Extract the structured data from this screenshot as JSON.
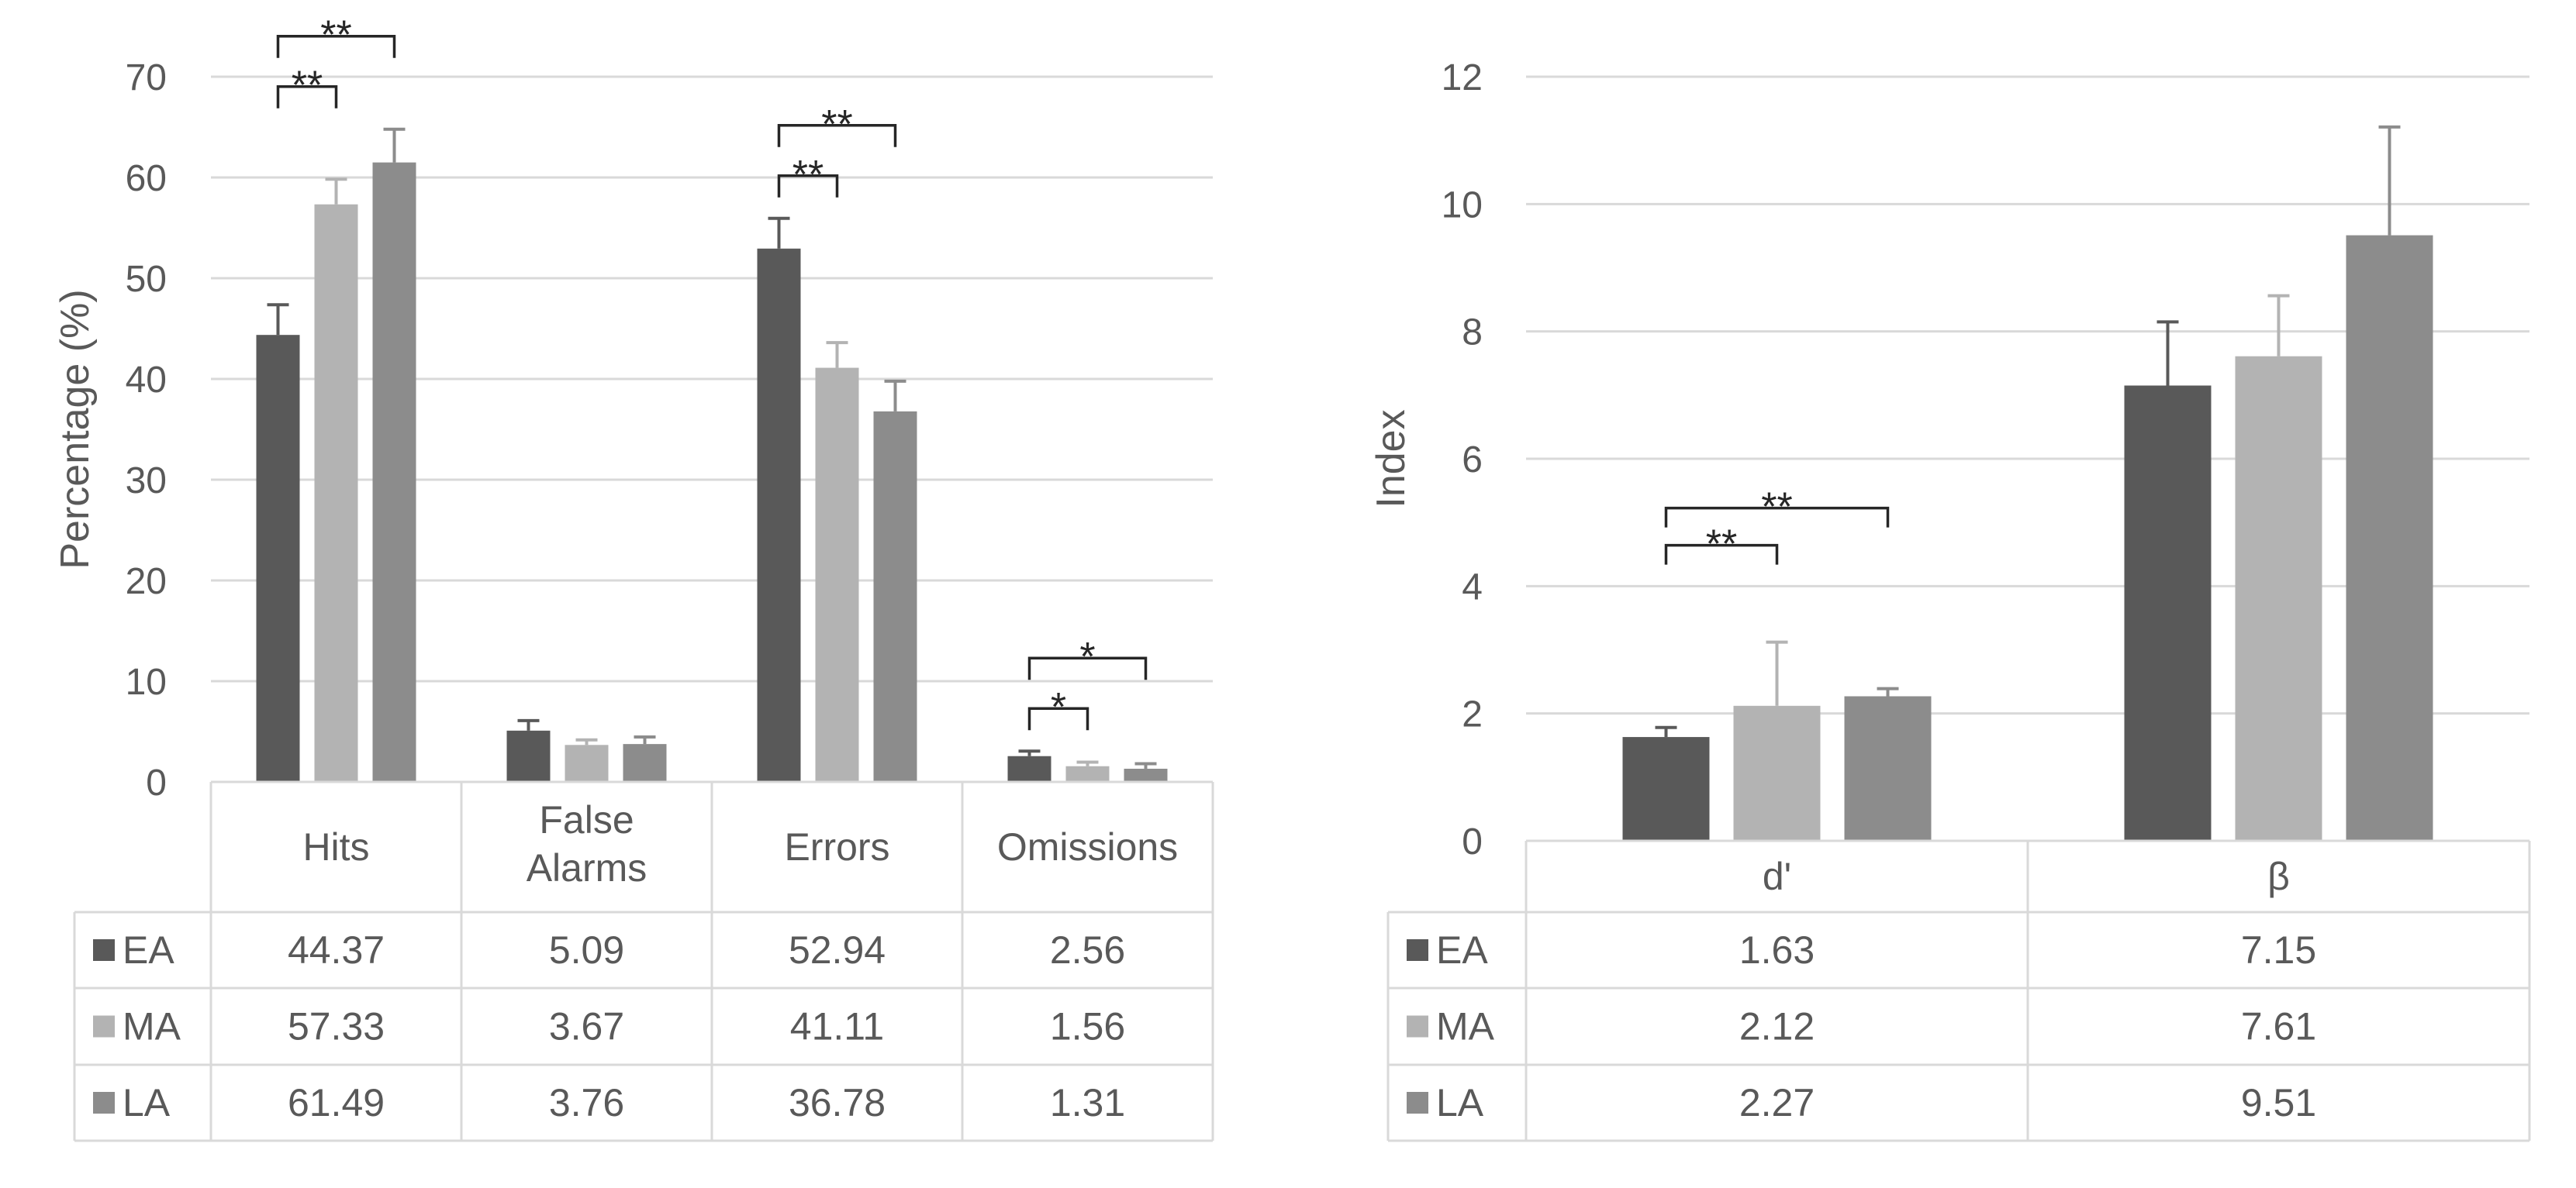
{
  "chart_data": [
    {
      "type": "bar",
      "title": "",
      "xlabel": "",
      "ylabel": "Percentage (%)",
      "ylim": [
        0,
        70
      ],
      "yticks": [
        0,
        10,
        20,
        30,
        40,
        50,
        60,
        70
      ],
      "grid": true,
      "legend": "data table below chart",
      "categories": [
        "Hits",
        "False Alarms",
        "Errors",
        "Omissions"
      ],
      "series": [
        {
          "name": "EA",
          "color": "#595959",
          "values": [
            44.37,
            5.09,
            52.94,
            2.56
          ],
          "errors": [
            3.0,
            1.0,
            3.0,
            0.5
          ]
        },
        {
          "name": "MA",
          "color": "#b3b3b3",
          "values": [
            57.33,
            3.67,
            41.11,
            1.56
          ],
          "errors": [
            2.5,
            0.5,
            2.5,
            0.4
          ]
        },
        {
          "name": "LA",
          "color": "#8c8c8c",
          "values": [
            61.49,
            3.76,
            36.78,
            1.31
          ],
          "errors": [
            3.3,
            0.7,
            3.0,
            0.5
          ]
        }
      ],
      "significance": [
        {
          "category": "Hits",
          "from": "EA",
          "to": "MA",
          "label": "**"
        },
        {
          "category": "Hits",
          "from": "EA",
          "to": "LA",
          "label": "**"
        },
        {
          "category": "Errors",
          "from": "EA",
          "to": "MA",
          "label": "**"
        },
        {
          "category": "Errors",
          "from": "EA",
          "to": "LA",
          "label": "**"
        },
        {
          "category": "Omissions",
          "from": "EA",
          "to": "MA",
          "label": "*"
        },
        {
          "category": "Omissions",
          "from": "EA",
          "to": "LA",
          "label": "*"
        }
      ]
    },
    {
      "type": "bar",
      "title": "",
      "xlabel": "",
      "ylabel": "Index",
      "ylim": [
        0,
        12
      ],
      "yticks": [
        0,
        2,
        4,
        6,
        8,
        10,
        12
      ],
      "grid": true,
      "legend": "data table below chart",
      "categories": [
        "d'",
        "β"
      ],
      "series": [
        {
          "name": "EA",
          "color": "#595959",
          "values": [
            1.63,
            7.15
          ],
          "errors": [
            0.15,
            1.0
          ]
        },
        {
          "name": "MA",
          "color": "#b3b3b3",
          "values": [
            2.12,
            7.61
          ],
          "errors": [
            1.0,
            0.95
          ]
        },
        {
          "name": "LA",
          "color": "#8c8c8c",
          "values": [
            2.27,
            9.51
          ],
          "errors": [
            0.12,
            1.7
          ]
        }
      ],
      "significance": [
        {
          "category": "d'",
          "from": "EA",
          "to": "MA",
          "label": "**"
        },
        {
          "category": "d'",
          "from": "EA",
          "to": "LA",
          "label": "**"
        }
      ]
    }
  ]
}
